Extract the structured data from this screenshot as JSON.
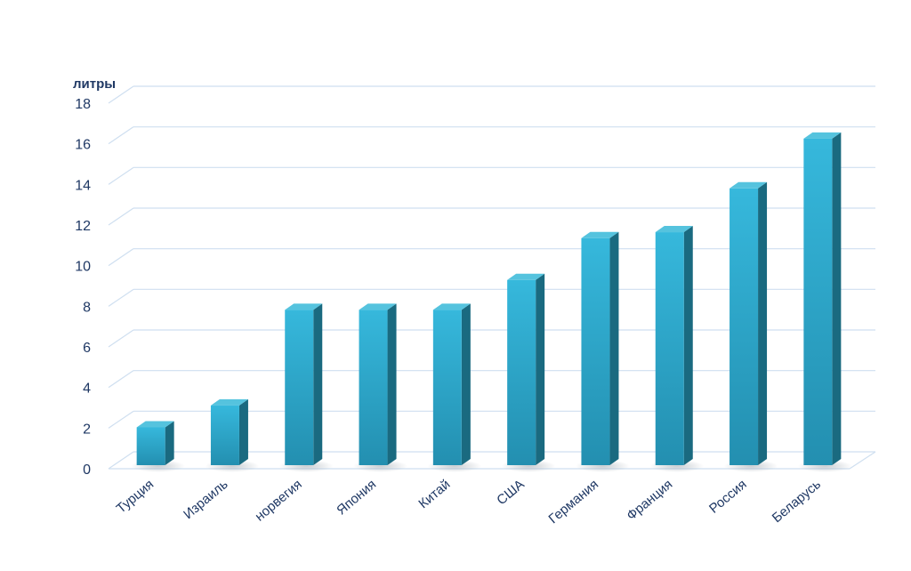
{
  "chart_data": {
    "type": "bar",
    "title": "",
    "xlabel": "",
    "ylabel": "литры",
    "ylim": [
      0,
      18
    ],
    "yticks": [
      0,
      2,
      4,
      6,
      8,
      10,
      12,
      14,
      16,
      18
    ],
    "grid": true,
    "categories": [
      "Турция",
      "Израиль",
      "норвегия",
      "Япония",
      "Китай",
      "США",
      "Германия",
      "Франция",
      "Россия",
      "Беларусь"
    ],
    "values": [
      1.9,
      3.0,
      7.8,
      7.8,
      7.8,
      9.3,
      11.4,
      11.7,
      13.9,
      16.4
    ],
    "colors": {
      "bar_front": "#2aa6c9",
      "bar_side": "#1a6a80",
      "bar_top": "#55c3de",
      "grid": "#cfdff0",
      "text": "#1f3864"
    }
  }
}
